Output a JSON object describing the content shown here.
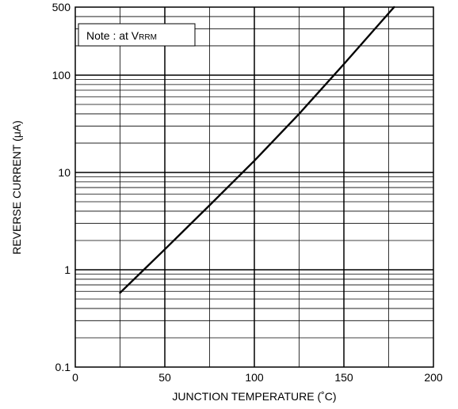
{
  "chart_data": {
    "type": "line",
    "title": "",
    "xlabel": "JUNCTION TEMPERATURE (˚C)",
    "ylabel": "REVERSE CURRENT (μA)",
    "xlim": [
      0,
      200
    ],
    "ylim": [
      0.1,
      500
    ],
    "yscale": "log",
    "grid": true,
    "x_ticks": [
      "0",
      "50",
      "100",
      "150",
      "200"
    ],
    "y_ticks": [
      "0.1",
      "1",
      "10",
      "100",
      "500"
    ],
    "annotation": {
      "prefix": "Note : at V",
      "subscript": "RRM"
    },
    "series": [
      {
        "x": [
          25,
          50,
          75,
          100,
          125,
          150,
          178
        ],
        "y": [
          0.58,
          1.62,
          4.6,
          13.2,
          40,
          130,
          500
        ]
      }
    ],
    "colors": {
      "line": "#000000",
      "grid": "#000000",
      "background": "#ffffff"
    }
  }
}
